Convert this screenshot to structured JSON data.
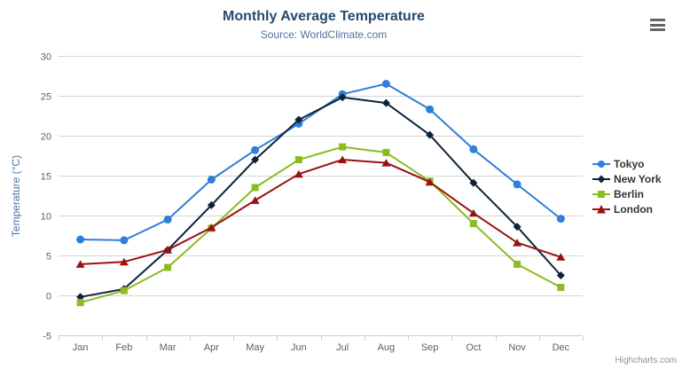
{
  "chart_data": {
    "type": "line",
    "title": "Monthly Average Temperature",
    "subtitle": "Source: WorldClimate.com",
    "xlabel": "",
    "ylabel": "Temperature (°C)",
    "categories": [
      "Jan",
      "Feb",
      "Mar",
      "Apr",
      "May",
      "Jun",
      "Jul",
      "Aug",
      "Sep",
      "Oct",
      "Nov",
      "Dec"
    ],
    "ylim": [
      -5,
      30
    ],
    "y_ticks": [
      -5,
      0,
      5,
      10,
      15,
      20,
      25,
      30
    ],
    "grid": true,
    "legend_position": "right",
    "series": [
      {
        "name": "Tokyo",
        "color": "#2f7ed8",
        "marker": "circle",
        "values": [
          7.0,
          6.9,
          9.5,
          14.5,
          18.2,
          21.5,
          25.2,
          26.5,
          23.3,
          18.3,
          13.9,
          9.6
        ]
      },
      {
        "name": "New York",
        "color": "#0d233a",
        "marker": "diamond",
        "values": [
          -0.2,
          0.8,
          5.7,
          11.3,
          17.0,
          22.0,
          24.8,
          24.1,
          20.1,
          14.1,
          8.6,
          2.5
        ]
      },
      {
        "name": "Berlin",
        "color": "#8bbc21",
        "marker": "square",
        "values": [
          -0.9,
          0.6,
          3.5,
          8.4,
          13.5,
          17.0,
          18.6,
          17.9,
          14.3,
          9.0,
          3.9,
          1.0
        ]
      },
      {
        "name": "London",
        "color": "#9a1111",
        "marker": "triangle",
        "values": [
          3.9,
          4.2,
          5.7,
          8.5,
          11.9,
          15.2,
          17.0,
          16.6,
          14.2,
          10.3,
          6.6,
          4.8
        ]
      }
    ],
    "credits": "Highcharts.com"
  },
  "icons": {
    "context_menu": "hamburger-bars"
  },
  "style_colors": {
    "title": "#274b6d",
    "axis_labels": "#606060",
    "axis_line": "#c0d0e0",
    "gridline": "#d4d4d4"
  }
}
